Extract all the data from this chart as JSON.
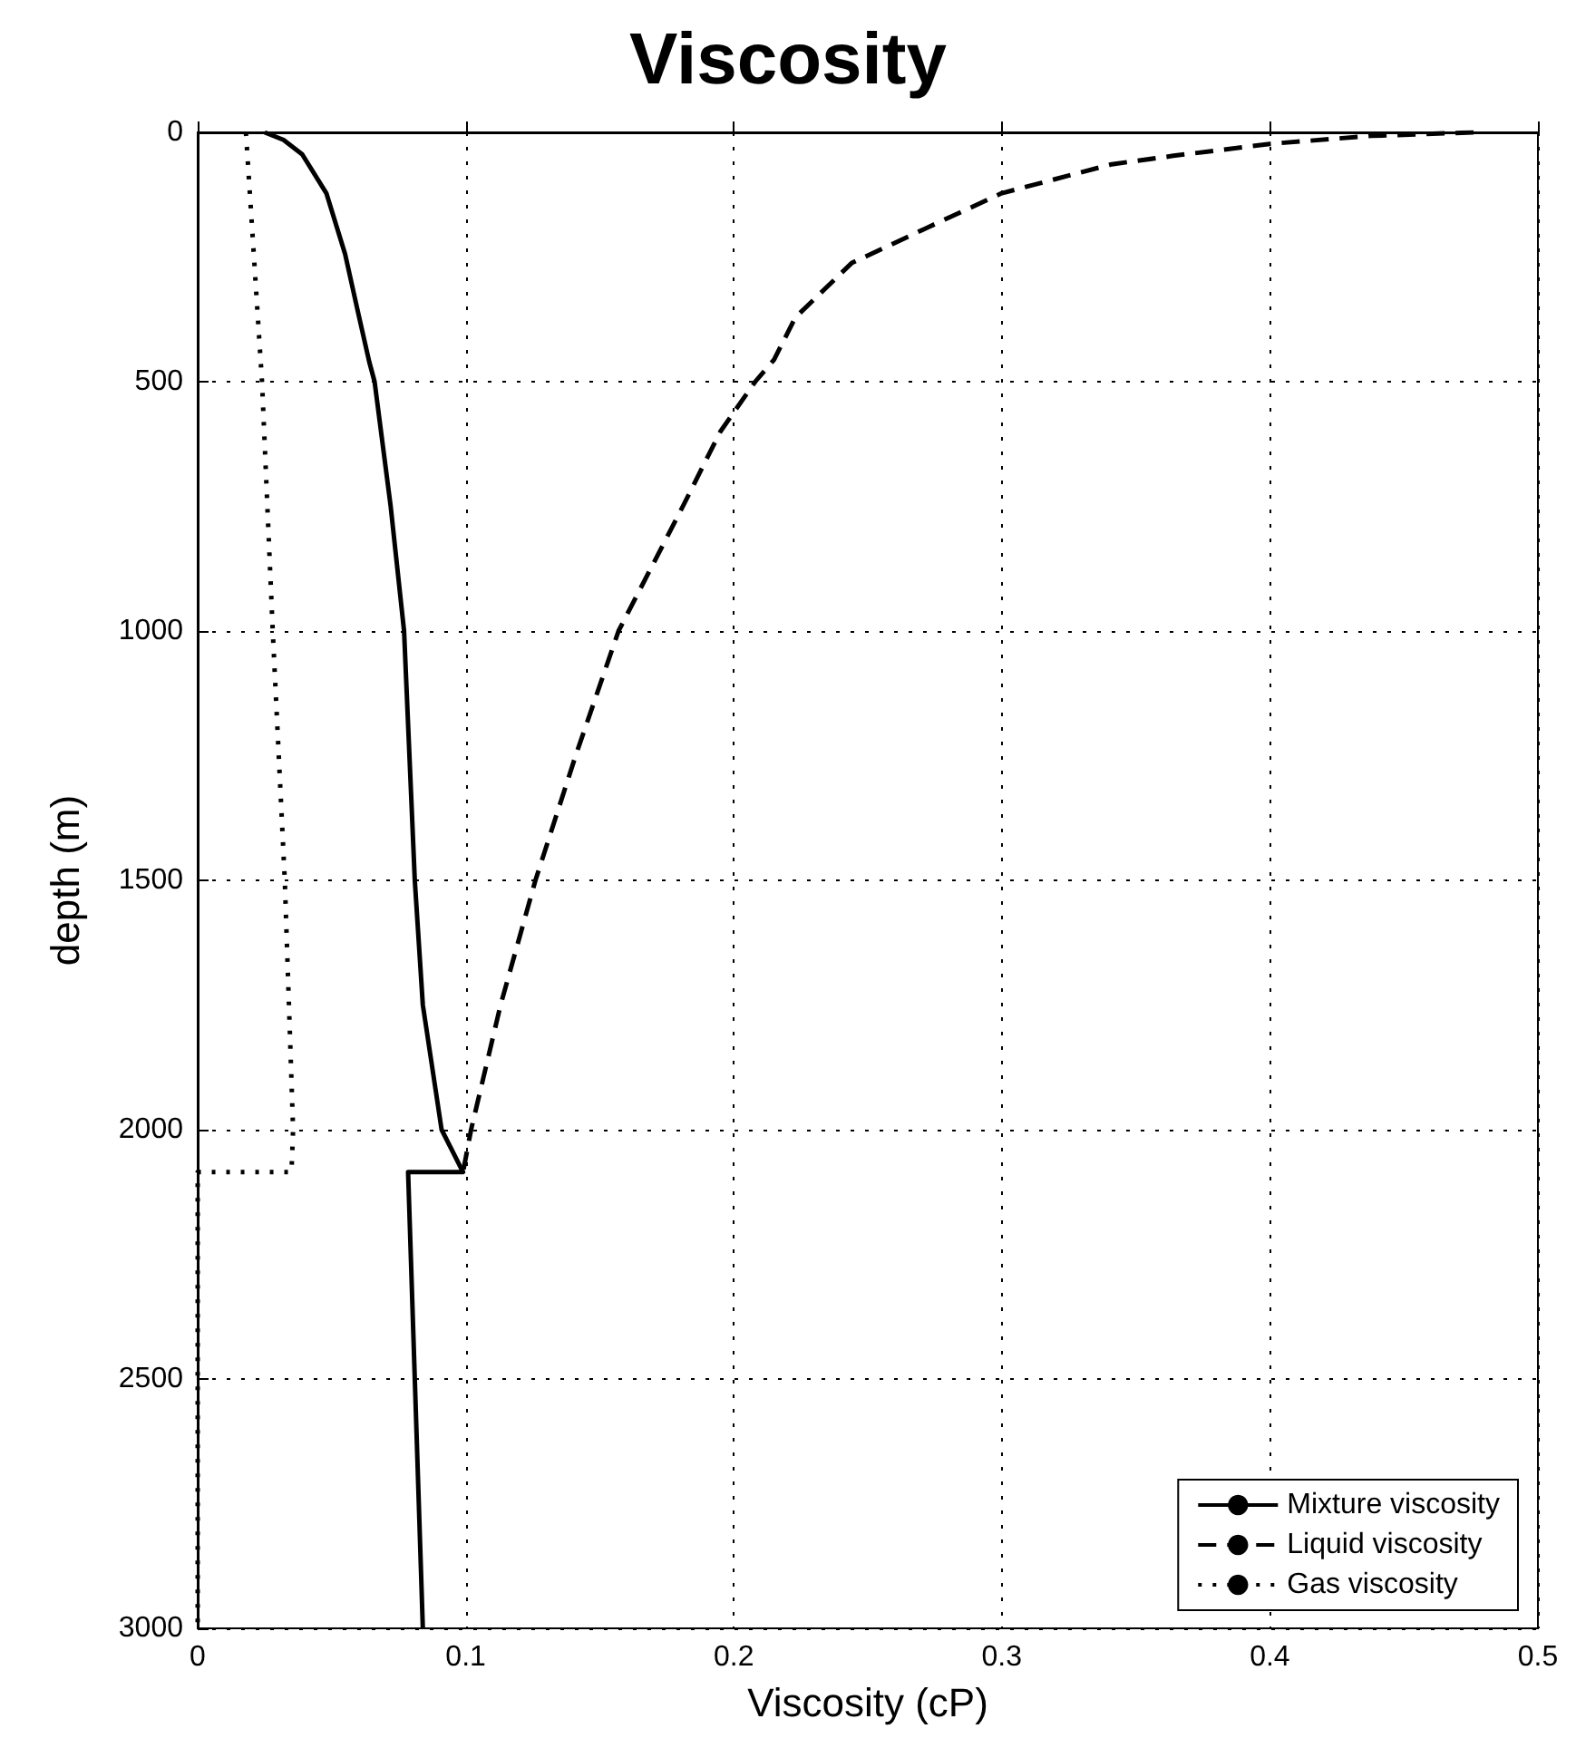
{
  "chart_data": {
    "type": "line",
    "title": "Viscosity",
    "xlabel": "Viscosity (cP)",
    "ylabel": "depth (m)",
    "xlim": [
      0,
      0.5
    ],
    "xticks": [
      0,
      0.1,
      0.2,
      0.3,
      0.4,
      0.5
    ],
    "ylim": [
      3000,
      0
    ],
    "yticks": [
      0,
      500,
      1000,
      1500,
      2000,
      2500,
      3000
    ],
    "grid": true,
    "legend": "bottom right",
    "marker": "none",
    "series": [
      {
        "name": "Mixture viscosity",
        "color": "#000000",
        "line_style": "solid",
        "x": [
          0.025,
          0.032,
          0.039,
          0.048,
          0.055,
          0.06,
          0.064,
          0.066,
          0.072,
          0.077,
          0.081,
          0.084,
          0.091,
          0.099,
          0.0785,
          0.081,
          0.084
        ],
        "values": [
          0,
          15,
          44,
          122,
          244,
          365,
          460,
          500,
          750,
          1000,
          1500,
          1750,
          2000,
          2085,
          2085,
          2500,
          3000
        ]
      },
      {
        "name": "Liquid viscosity",
        "color": "#000000",
        "line_style": "dashed",
        "x": [
          0.476,
          0.438,
          0.4,
          0.364,
          0.341,
          0.3,
          0.273,
          0.244,
          0.223,
          0.215,
          0.208,
          0.195,
          0.181,
          0.157,
          0.141,
          0.126,
          0.113,
          0.102,
          0.099
        ],
        "values": [
          0,
          7,
          23,
          47,
          64,
          122,
          189,
          262,
          371,
          456,
          500,
          600,
          750,
          1000,
          1250,
          1500,
          1750,
          2000,
          2085
        ]
      },
      {
        "name": "Gas viscosity",
        "color": "#000000",
        "line_style": "dotted",
        "x": [
          0.018,
          0.024,
          0.028,
          0.0325,
          0.0356,
          0.035,
          0,
          0
        ],
        "values": [
          0,
          500,
          1000,
          1500,
          2000,
          2085,
          2085,
          3000
        ]
      }
    ]
  }
}
